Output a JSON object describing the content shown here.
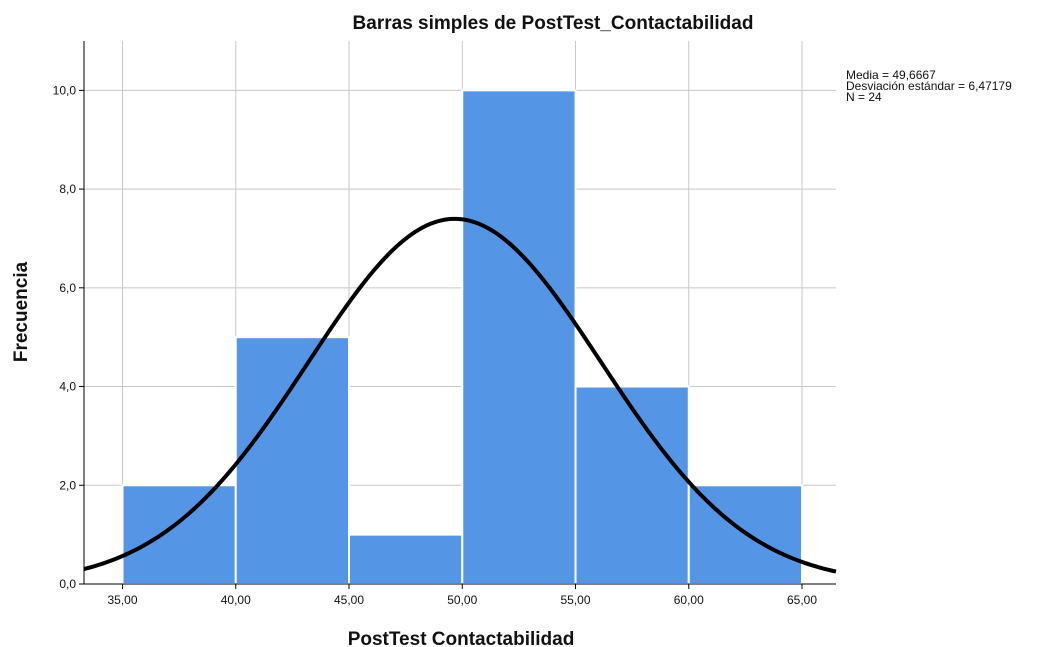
{
  "chart_data": {
    "type": "bar",
    "title": "Barras simples de PostTest_Contactabilidad",
    "xlabel": "PostTest  Contactabilidad",
    "ylabel": "Frecuencia",
    "xlim": [
      33.3,
      66.5
    ],
    "ylim": [
      0,
      11.0
    ],
    "bins": [
      {
        "start": 35,
        "end": 40,
        "value": 2
      },
      {
        "start": 40,
        "end": 45,
        "value": 5
      },
      {
        "start": 45,
        "end": 50,
        "value": 1
      },
      {
        "start": 50,
        "end": 55,
        "value": 10
      },
      {
        "start": 55,
        "end": 60,
        "value": 4
      },
      {
        "start": 60,
        "end": 65,
        "value": 2
      }
    ],
    "x_ticks": [
      35,
      40,
      45,
      50,
      55,
      60,
      65
    ],
    "x_tick_labels": [
      "35,00",
      "40,00",
      "45,00",
      "50,00",
      "55,00",
      "60,00",
      "65,00"
    ],
    "y_ticks": [
      0,
      2,
      4,
      6,
      8,
      10
    ],
    "y_tick_labels": [
      "0,0",
      "2,0",
      "4,0",
      "6,0",
      "8,0",
      "10,0"
    ],
    "grid": true,
    "normal_curve": {
      "mean": 49.6667,
      "std": 6.47179,
      "n": 24,
      "bin_width": 5
    },
    "stats_text": [
      "Media = 49,6667",
      "Desviación estándar = 6,47179",
      "N = 24"
    ],
    "colors": {
      "bar_fill": "#5595E5",
      "bar_stroke": "#FFFFFF",
      "grid": "#C8C8C8",
      "curve": "#000000",
      "axis": "#000000"
    }
  }
}
